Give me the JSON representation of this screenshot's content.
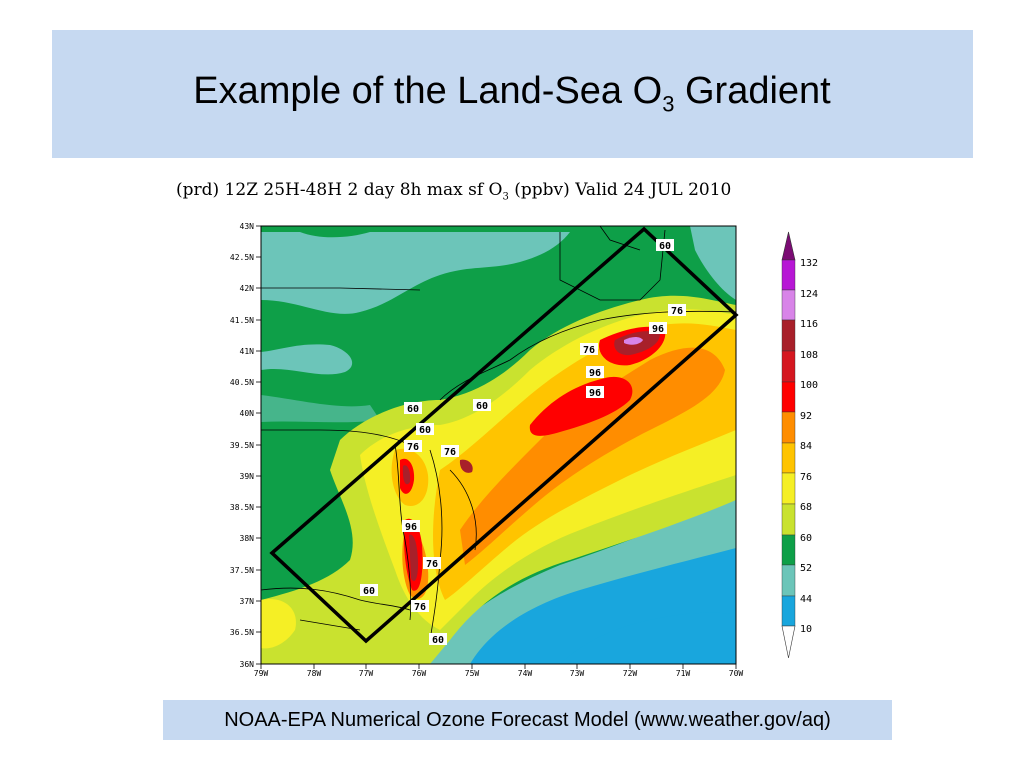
{
  "slide": {
    "title_main": "Example of the Land-Sea O",
    "title_sub": "3",
    "title_end": " Gradient"
  },
  "map": {
    "caption_main": "(prd) 12Z 25H-48H 2 day 8h max sf O",
    "caption_sub": "3",
    "caption_end": " (ppbv) Valid 24 JUL 2010",
    "lat_labels": [
      "43N",
      "42.5N",
      "42N",
      "41.5N",
      "41N",
      "40.5N",
      "40N",
      "39.5N",
      "39N",
      "38.5N",
      "38N",
      "37.5N",
      "37N",
      "36.5N",
      "36N"
    ],
    "lon_labels": [
      "79W",
      "78W",
      "77W",
      "76W",
      "75W",
      "74W",
      "73W",
      "72W",
      "71W",
      "70W"
    ],
    "contour_labels": [
      {
        "text": "60",
        "id": "c60-ne"
      },
      {
        "text": "76",
        "id": "c76-ri"
      },
      {
        "text": "96",
        "id": "c96-ct"
      },
      {
        "text": "76",
        "id": "c76-li"
      },
      {
        "text": "96",
        "id": "c96-li"
      },
      {
        "text": "96",
        "id": "c96-nj"
      },
      {
        "text": "60",
        "id": "c60-pa"
      },
      {
        "text": "60",
        "id": "c60-nj"
      },
      {
        "text": "60",
        "id": "c60-de"
      },
      {
        "text": "76",
        "id": "c76-md"
      },
      {
        "text": "76",
        "id": "c76-dc"
      },
      {
        "text": "96",
        "id": "c96-bay"
      },
      {
        "text": "76",
        "id": "c76-va"
      },
      {
        "text": "60",
        "id": "c60-va"
      },
      {
        "text": "76",
        "id": "c76-nf"
      },
      {
        "text": "60",
        "id": "c60-nc"
      }
    ],
    "colorbar": {
      "levels": [
        "132",
        "124",
        "116",
        "108",
        "100",
        "92",
        "84",
        "76",
        "68",
        "60",
        "52",
        "44",
        "10"
      ],
      "colors": [
        "#7b0c74",
        "#b717d5",
        "#d884e8",
        "#a8202a",
        "#d51720",
        "#ff0000",
        "#ff8d00",
        "#ffc400",
        "#f5ef25",
        "#c9e22f",
        "#0e9f48",
        "#6cc5b9",
        "#19a6dd",
        "#ffffff"
      ]
    }
  },
  "credit": {
    "text": "NOAA-EPA Numerical Ozone Forecast Model (www.weather.gov/aq)"
  }
}
